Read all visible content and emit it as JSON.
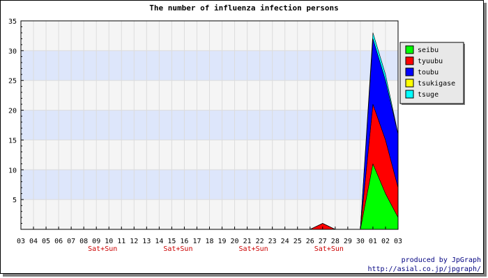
{
  "chart_data": {
    "type": "area",
    "title": "The number of influenza infection persons",
    "stacked": true,
    "x": [
      "03",
      "04",
      "05",
      "06",
      "07",
      "08",
      "09",
      "10",
      "11",
      "12",
      "13",
      "14",
      "15",
      "16",
      "17",
      "18",
      "19",
      "20",
      "21",
      "22",
      "23",
      "24",
      "25",
      "26",
      "27",
      "28",
      "29",
      "30",
      "01",
      "02",
      "03"
    ],
    "ylim": [
      0,
      35
    ],
    "yticks": [
      5,
      10,
      15,
      20,
      25,
      30,
      35
    ],
    "weekend_marks": [
      {
        "label": "Sat+Sun",
        "after_index": 6
      },
      {
        "label": "Sat+Sun",
        "after_index": 12
      },
      {
        "label": "Sat+Sun",
        "after_index": 18
      },
      {
        "label": "Sat+Sun",
        "after_index": 24
      }
    ],
    "series": [
      {
        "name": "seibu",
        "color": "#00ff00",
        "values": [
          0,
          0,
          0,
          0,
          0,
          0,
          0,
          0,
          0,
          0,
          0,
          0,
          0,
          0,
          0,
          0,
          0,
          0,
          0,
          0,
          0,
          0,
          0,
          0,
          0,
          0,
          0,
          0,
          11,
          6,
          2
        ]
      },
      {
        "name": "tyuubu",
        "color": "#ff0000",
        "values": [
          0,
          0,
          0,
          0,
          0,
          0,
          0,
          0,
          0,
          0,
          0,
          0,
          0,
          0,
          0,
          0,
          0,
          0,
          0,
          0,
          0,
          0,
          0,
          0,
          1,
          0,
          0,
          0,
          10,
          9,
          5
        ]
      },
      {
        "name": "toubu",
        "color": "#0000ff",
        "values": [
          0,
          0,
          0,
          0,
          0,
          0,
          0,
          0,
          0,
          0,
          0,
          0,
          0,
          0,
          0,
          0,
          0,
          0,
          0,
          0,
          0,
          0,
          0,
          0,
          0,
          0,
          0,
          0,
          11,
          10,
          9
        ]
      },
      {
        "name": "tsukigase",
        "color": "#ffff00",
        "values": [
          0,
          0,
          0,
          0,
          0,
          0,
          0,
          0,
          0,
          0,
          0,
          0,
          0,
          0,
          0,
          0,
          0,
          0,
          0,
          0,
          0,
          0,
          0,
          0,
          0,
          0,
          0,
          0,
          0,
          0,
          0
        ]
      },
      {
        "name": "tsuge",
        "color": "#00ffff",
        "values": [
          0,
          0,
          0,
          0,
          0,
          0,
          0,
          0,
          0,
          0,
          0,
          0,
          0,
          0,
          0,
          0,
          0,
          0,
          0,
          0,
          0,
          0,
          0,
          0,
          0,
          0,
          0,
          0,
          1,
          1,
          0
        ]
      }
    ],
    "legend_position": "top-right",
    "grid": true,
    "band_colors": [
      "#f5f5f5",
      "#dde6fb"
    ],
    "credit_lines": [
      "produced by JpGraph",
      "http://asial.co.jp/jpgraph/"
    ]
  }
}
